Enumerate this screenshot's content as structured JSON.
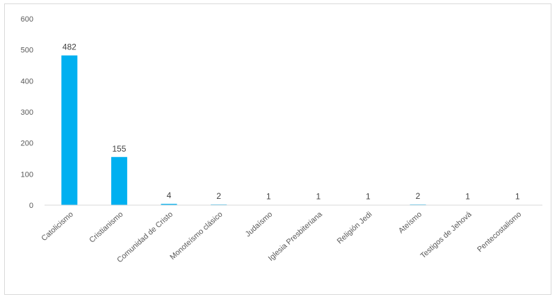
{
  "chart_data": {
    "type": "bar",
    "categories": [
      "Catolicismo",
      "Cristianismo",
      "Comunidad de Cristo",
      "Monoteísmo clásico",
      "Judaísmo",
      "Iglesia Presbiteriana",
      "Religión Jedi",
      "Ateísmo",
      "Testigos de Jehová",
      "Pentecostalismo"
    ],
    "values": [
      482,
      155,
      4,
      2,
      1,
      1,
      1,
      2,
      1,
      1
    ],
    "data_labels": [
      "482",
      "155",
      "4",
      "2",
      "1",
      "1",
      "1",
      "2",
      "1",
      "1"
    ],
    "ylim": [
      0,
      600
    ],
    "yticks": [
      0,
      100,
      200,
      300,
      400,
      500,
      600
    ],
    "ytick_labels": [
      "0",
      "100",
      "200",
      "300",
      "400",
      "500",
      "600"
    ],
    "grid": false,
    "bar_color": "#00B0F0",
    "axis_color": "#d9d9d9"
  }
}
